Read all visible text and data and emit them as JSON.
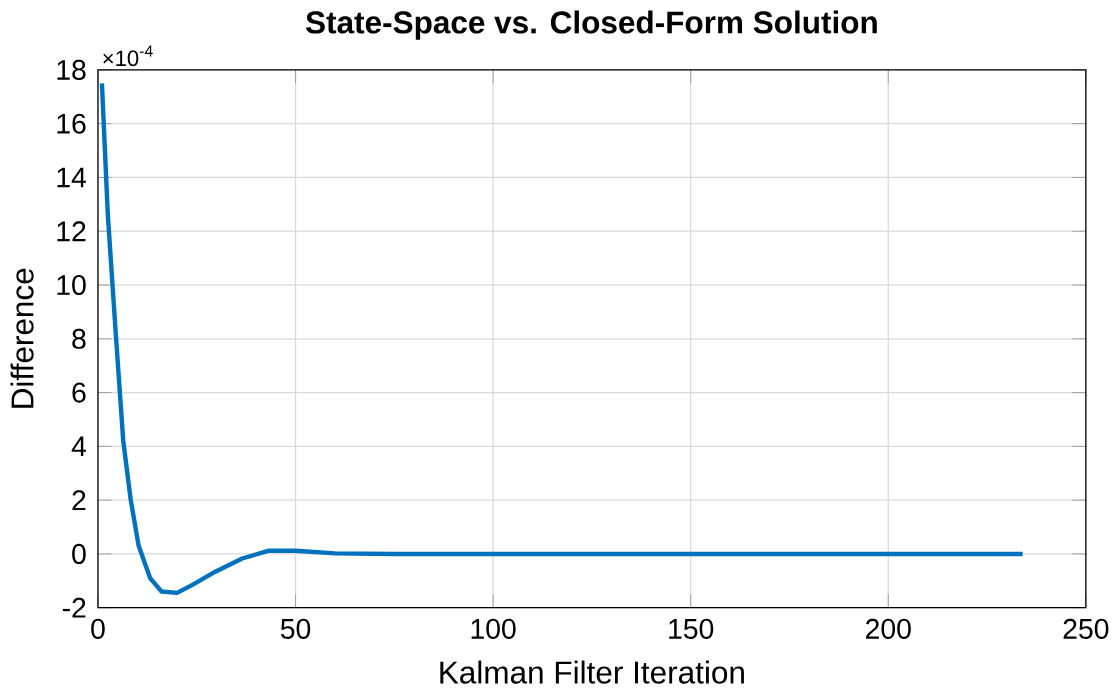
{
  "chart_data": {
    "type": "line",
    "title": "State-Space vs. Closed-Form Solution",
    "xlabel": "Kalman Filter Iteration",
    "ylabel": "Difference",
    "annotations": [
      "×10$^{-4}$"
    ],
    "x": [
      1,
      2.5,
      4.5,
      6.4,
      8.3,
      10.3,
      13.2,
      16.1,
      20,
      23.9,
      29.7,
      36.5,
      43.3,
      50,
      60,
      75,
      100,
      150,
      200,
      234
    ],
    "series": [
      {
        "color": "#0072bd",
        "values": [
          17.5,
          12.6,
          8.2,
          4.2,
          2.0,
          0.3,
          -0.9,
          -1.4,
          -1.45,
          -1.15,
          -0.66,
          -0.17,
          0.12,
          0.12,
          0.02,
          0,
          0,
          0,
          0,
          0
        ]
      }
    ],
    "xlim": [
      0,
      250
    ],
    "ylim": [
      -2,
      18
    ],
    "xticks": [
      0,
      50,
      100,
      150,
      200,
      250
    ],
    "yticks": [
      -2,
      0,
      2,
      4,
      6,
      8,
      10,
      12,
      14,
      16,
      18
    ],
    "grid": true,
    "marker": "none",
    "line_style": "solid"
  }
}
